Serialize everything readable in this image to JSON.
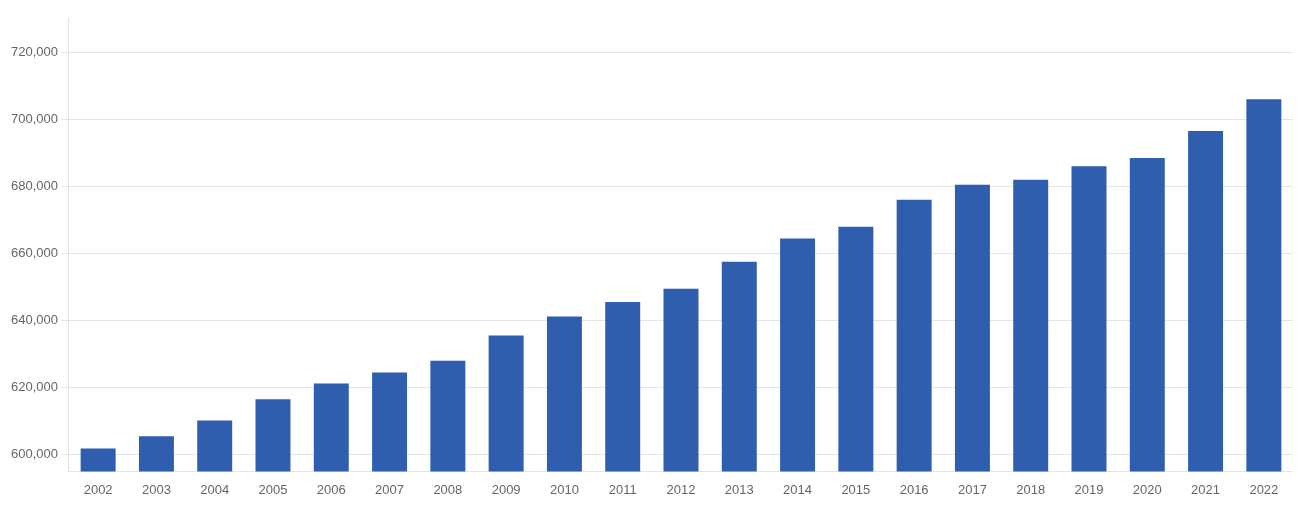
{
  "chart_data": {
    "type": "bar",
    "categories": [
      "2002",
      "2003",
      "2004",
      "2005",
      "2006",
      "2007",
      "2008",
      "2009",
      "2010",
      "2011",
      "2012",
      "2013",
      "2014",
      "2015",
      "2016",
      "2017",
      "2018",
      "2019",
      "2020",
      "2021",
      "2022"
    ],
    "values": [
      601800,
      605500,
      610200,
      616500,
      621200,
      624500,
      628000,
      635500,
      641200,
      645500,
      649500,
      657500,
      664500,
      668000,
      676000,
      680500,
      682000,
      686000,
      688500,
      696500,
      706000
    ],
    "color": "#2e5ead",
    "ylim": [
      595000,
      730000
    ],
    "yticks": [
      {
        "value": 600000,
        "label": "600,000"
      },
      {
        "value": 620000,
        "label": "620,000"
      },
      {
        "value": 640000,
        "label": "640,000"
      },
      {
        "value": 660000,
        "label": "660,000"
      },
      {
        "value": 680000,
        "label": "680,000"
      },
      {
        "value": 700000,
        "label": "700,000"
      },
      {
        "value": 720000,
        "label": "720,000"
      }
    ],
    "grid": true
  }
}
